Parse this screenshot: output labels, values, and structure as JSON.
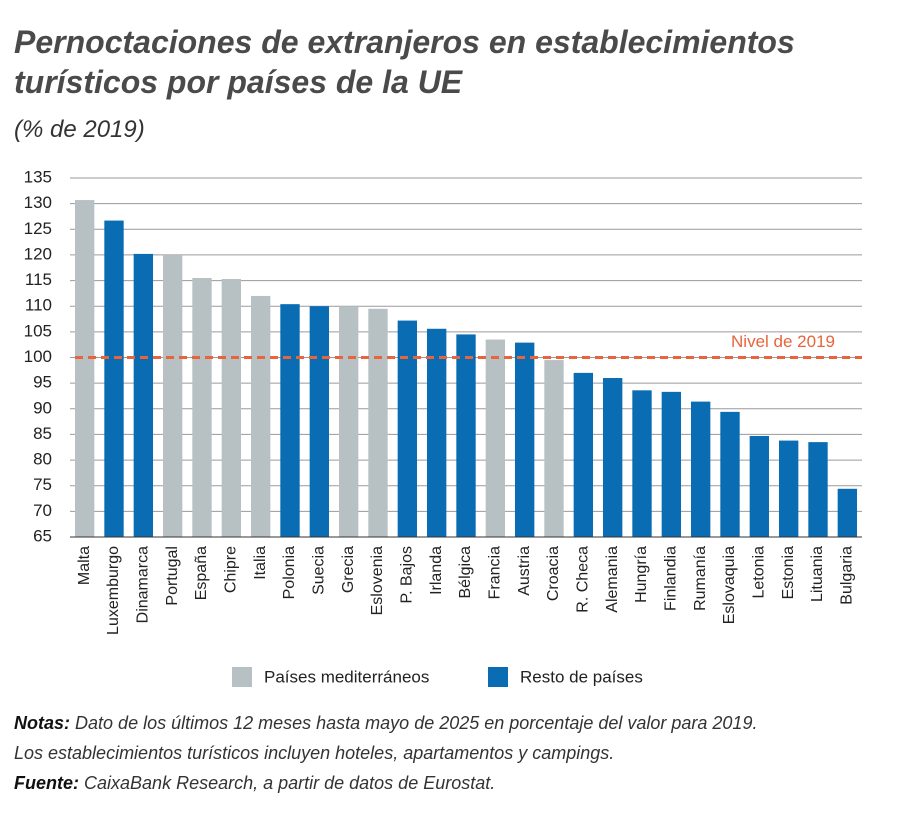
{
  "chart_data": {
    "type": "bar",
    "title": "Pernoctaciones de extranjeros en establecimientos turísticos por países de la UE",
    "subtitle": "(% de 2019)",
    "categories": [
      "Malta",
      "Luxemburgo",
      "Dinamarca",
      "Portugal",
      "España",
      "Chipre",
      "Italia",
      "Polonia",
      "Suecia",
      "Grecia",
      "Eslovenia",
      "P. Bajos",
      "Irlanda",
      "Bélgica",
      "Francia",
      "Austria",
      "Croacia",
      "R. Checa",
      "Alemania",
      "Hungría",
      "Finlandia",
      "Rumanía",
      "Eslovaquia",
      "Letonia",
      "Estonia",
      "Lituania",
      "Bulgaria"
    ],
    "series": [
      {
        "name": "Países mediterráneos",
        "color": "#b7c1c4",
        "values": [
          130.7,
          null,
          null,
          120,
          115.5,
          115.3,
          112,
          null,
          null,
          110,
          109.5,
          null,
          null,
          null,
          103.5,
          null,
          99.5,
          null,
          null,
          null,
          null,
          null,
          null,
          null,
          null,
          null,
          null
        ]
      },
      {
        "name": "Resto de países",
        "color": "#0a6db3",
        "values": [
          null,
          126.7,
          120.2,
          null,
          null,
          null,
          null,
          110.4,
          110,
          null,
          null,
          107.2,
          105.6,
          104.5,
          null,
          102.9,
          null,
          97,
          96,
          93.6,
          93.3,
          91.4,
          89.4,
          84.7,
          83.8,
          83.5,
          74.4
        ]
      }
    ],
    "ylim": [
      65,
      135
    ],
    "yticks": [
      65,
      70,
      75,
      80,
      85,
      90,
      95,
      100,
      105,
      110,
      115,
      120,
      125,
      130,
      135
    ],
    "grid": true,
    "reference_line": {
      "value": 100,
      "label": "Nivel de 2019",
      "color": "#e8643c"
    },
    "notes": [
      {
        "label": "Notas:",
        "lines": [
          "Dato de los últimos 12 meses hasta mayo de 2025 en porcentaje del valor para 2019.",
          "Los establecimientos turísticos incluyen hoteles, apartamentos y campings."
        ]
      },
      {
        "label": "Fuente:",
        "lines": [
          "CaixaBank Research, a partir de datos de Eurostat."
        ]
      }
    ]
  }
}
